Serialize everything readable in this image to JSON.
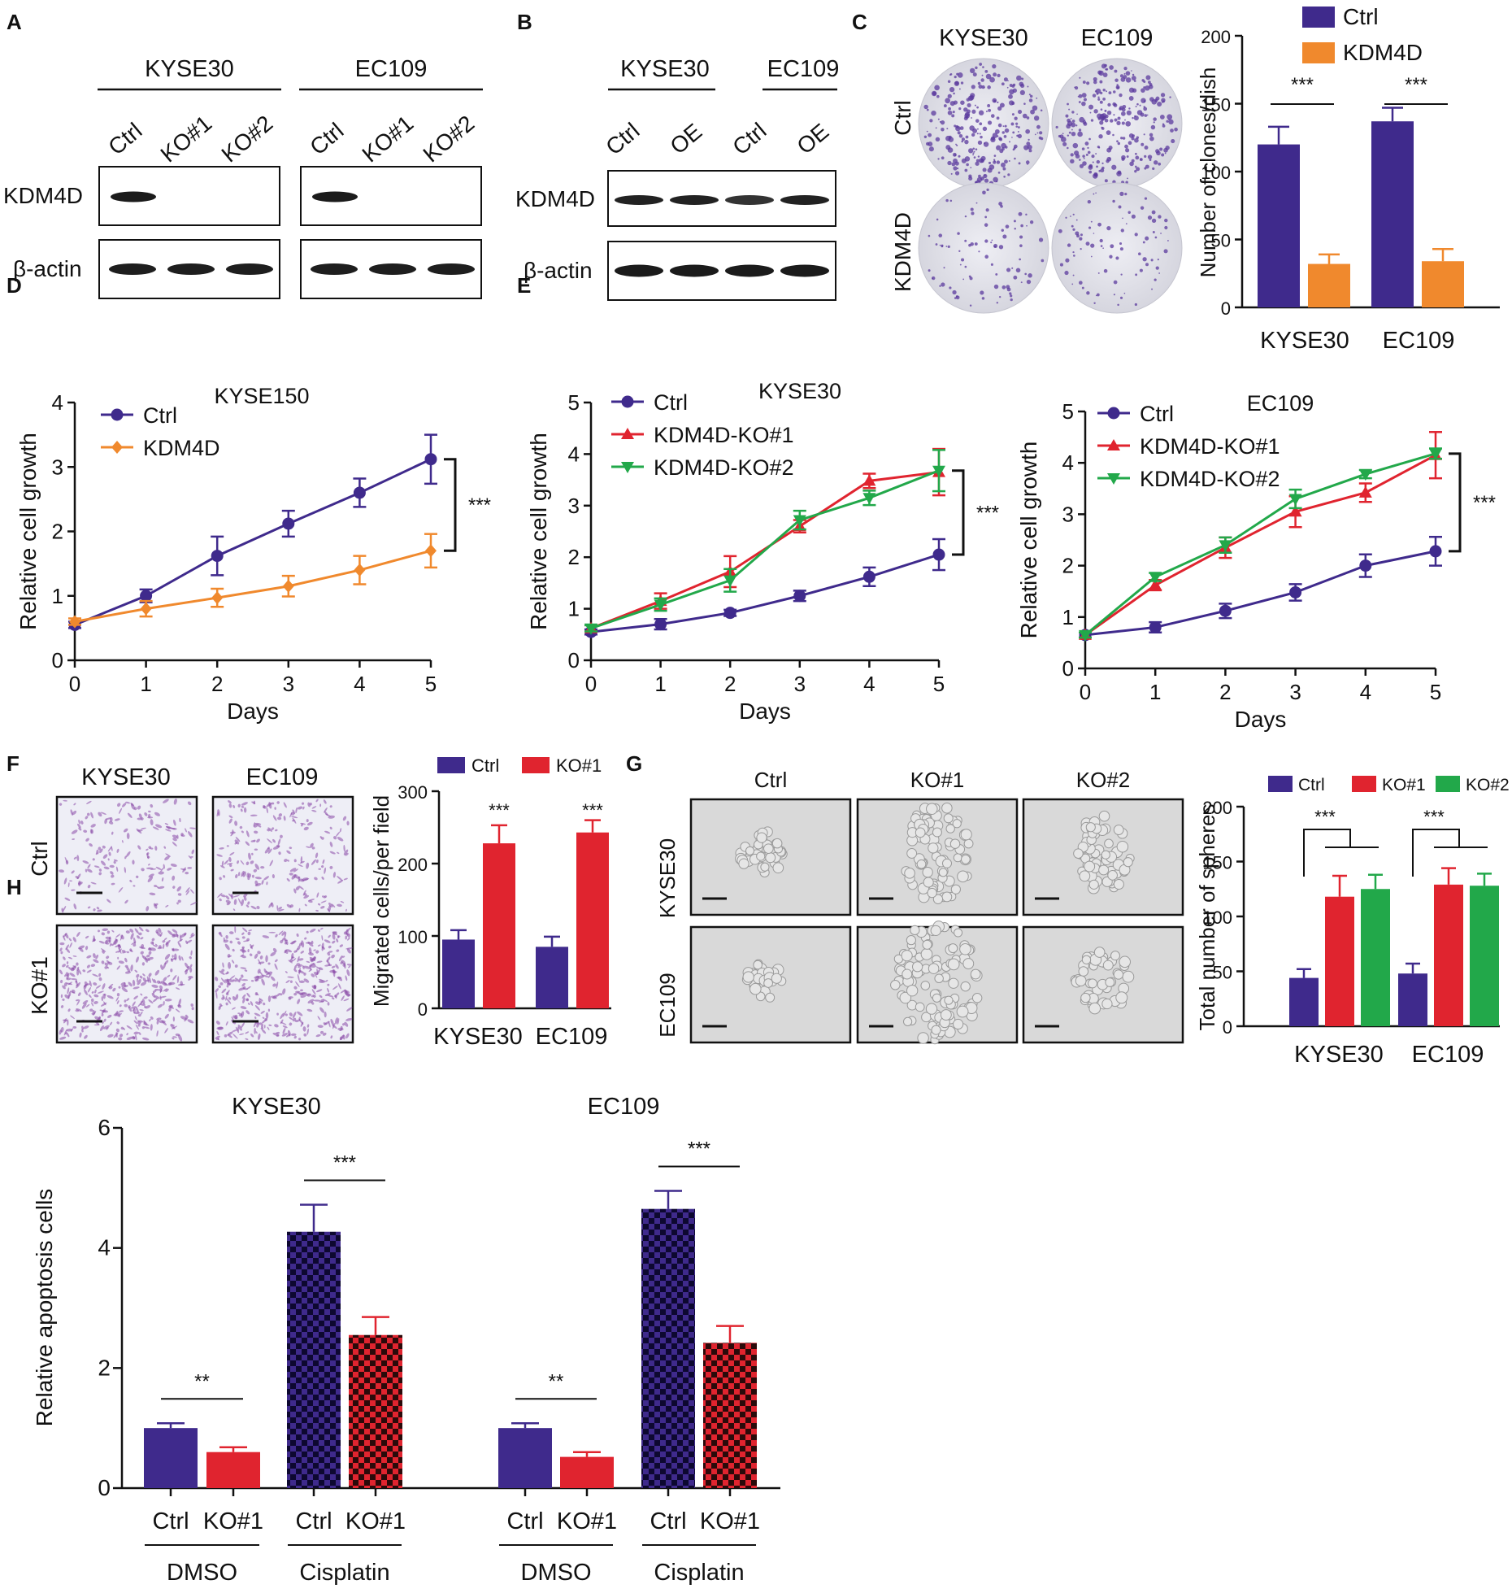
{
  "panel_labels": [
    "A",
    "B",
    "C",
    "D",
    "E",
    "F",
    "G",
    "H"
  ],
  "colors": {
    "ctrl": "#3f2a8c",
    "kdm4d": "#f0892d",
    "ko1": "#e0242f",
    "ko2": "#22a84a",
    "axis": "#111111"
  },
  "panel_a": {
    "cell_lines": [
      "KYSE30",
      "EC109"
    ],
    "lanes": [
      [
        "Ctrl",
        "KO#1",
        "KO#2"
      ],
      [
        "Ctrl",
        "KO#1",
        "KO#2"
      ]
    ],
    "rows": [
      "KDM4D",
      "β-actin"
    ]
  },
  "panel_b": {
    "cell_lines": [
      "KYSE30",
      "EC109"
    ],
    "lanes": [
      "Ctrl",
      "OE",
      "Ctrl",
      "OE"
    ],
    "rows": [
      "KDM4D",
      "β-actin"
    ]
  },
  "panel_c": {
    "columns": [
      "KYSE30",
      "EC109"
    ],
    "rows": [
      "Ctrl",
      "KDM4D"
    ]
  },
  "panel_f": {
    "columns": [
      "KYSE30",
      "EC109"
    ],
    "rows": [
      "Ctrl",
      "KO#1"
    ]
  },
  "panel_g": {
    "columns": [
      "Ctrl",
      "KO#1",
      "KO#2"
    ],
    "rows": [
      "KYSE30",
      "EC109"
    ]
  },
  "chart_data": [
    {
      "id": "C",
      "type": "bar",
      "title": "",
      "xlabel": "",
      "ylabel": "Number of clones/dish",
      "categories": [
        "KYSE30",
        "EC109"
      ],
      "ylim": [
        0,
        200
      ],
      "yticks": [
        0,
        50,
        100,
        150,
        200
      ],
      "series": [
        {
          "name": "Ctrl",
          "values": [
            120,
            137
          ],
          "errors": [
            13,
            10
          ]
        },
        {
          "name": "KDM4D",
          "values": [
            32,
            34
          ],
          "errors": [
            7,
            9
          ]
        }
      ],
      "significance": [
        "***",
        "***"
      ],
      "legend": "top-right"
    },
    {
      "id": "D",
      "type": "line",
      "title": "KYSE150",
      "xlabel": "Days",
      "ylabel": "Relative cell growth",
      "x": [
        0,
        1,
        2,
        3,
        4,
        5
      ],
      "xlim": [
        0,
        5
      ],
      "ylim": [
        0,
        4
      ],
      "yticks": [
        0,
        1,
        2,
        3,
        4
      ],
      "series": [
        {
          "name": "Ctrl",
          "values": [
            0.55,
            1.0,
            1.62,
            2.12,
            2.6,
            3.12
          ],
          "errors": [
            0.05,
            0.1,
            0.3,
            0.2,
            0.22,
            0.38
          ]
        },
        {
          "name": "KDM4D",
          "values": [
            0.6,
            0.8,
            0.97,
            1.15,
            1.4,
            1.7
          ],
          "errors": [
            0.05,
            0.12,
            0.14,
            0.16,
            0.22,
            0.26
          ]
        }
      ],
      "significance": "***"
    },
    {
      "id": "E1",
      "type": "line",
      "title": "KYSE30",
      "xlabel": "Days",
      "ylabel": "Relative cell growth",
      "x": [
        0,
        1,
        2,
        3,
        4,
        5
      ],
      "xlim": [
        0,
        5
      ],
      "ylim": [
        0,
        5
      ],
      "yticks": [
        0,
        1,
        2,
        3,
        4,
        5
      ],
      "series": [
        {
          "name": "Ctrl",
          "values": [
            0.55,
            0.7,
            0.92,
            1.25,
            1.62,
            2.05
          ],
          "errors": [
            0.05,
            0.1,
            0.06,
            0.1,
            0.18,
            0.3
          ]
        },
        {
          "name": "KDM4D-KO#1",
          "values": [
            0.62,
            1.15,
            1.72,
            2.6,
            3.48,
            3.65
          ],
          "errors": [
            0.06,
            0.15,
            0.3,
            0.12,
            0.14,
            0.45
          ]
        },
        {
          "name": "KDM4D-KO#2",
          "values": [
            0.62,
            1.08,
            1.55,
            2.72,
            3.15,
            3.68
          ],
          "errors": [
            0.06,
            0.12,
            0.22,
            0.18,
            0.14,
            0.4
          ]
        }
      ],
      "significance": "***"
    },
    {
      "id": "E2",
      "type": "line",
      "title": "EC109",
      "xlabel": "Days",
      "ylabel": "Relative cell growth",
      "x": [
        0,
        1,
        2,
        3,
        4,
        5
      ],
      "xlim": [
        0,
        5
      ],
      "ylim": [
        0,
        5
      ],
      "yticks": [
        0,
        1,
        2,
        3,
        4,
        5
      ],
      "series": [
        {
          "name": "Ctrl",
          "values": [
            0.65,
            0.8,
            1.12,
            1.48,
            2.0,
            2.28
          ],
          "errors": [
            0.05,
            0.1,
            0.14,
            0.16,
            0.22,
            0.28
          ]
        },
        {
          "name": "KDM4D-KO#1",
          "values": [
            0.65,
            1.62,
            2.35,
            3.05,
            3.42,
            4.15
          ],
          "errors": [
            0.05,
            0.1,
            0.2,
            0.3,
            0.18,
            0.45
          ]
        },
        {
          "name": "KDM4D-KO#2",
          "values": [
            0.65,
            1.78,
            2.4,
            3.3,
            3.78,
            4.18
          ],
          "errors": [
            0.05,
            0.08,
            0.15,
            0.18,
            0.08,
            0.1
          ]
        }
      ],
      "significance": "***"
    },
    {
      "id": "F",
      "type": "bar",
      "title": "",
      "xlabel": "",
      "ylabel": "Migrated cells/per field",
      "categories": [
        "KYSE30",
        "EC109"
      ],
      "ylim": [
        0,
        300
      ],
      "yticks": [
        0,
        100,
        200,
        300
      ],
      "series": [
        {
          "name": "Ctrl",
          "values": [
            95,
            85
          ],
          "errors": [
            13,
            14
          ]
        },
        {
          "name": "KO#1",
          "values": [
            228,
            243
          ],
          "errors": [
            25,
            17
          ]
        }
      ],
      "significance": [
        "***",
        "***"
      ],
      "legend": "top"
    },
    {
      "id": "G",
      "type": "bar",
      "title": "",
      "xlabel": "",
      "ylabel": "Total number of spheres",
      "categories": [
        "KYSE30",
        "EC109"
      ],
      "ylim": [
        0,
        200
      ],
      "yticks": [
        0,
        50,
        100,
        150,
        200
      ],
      "series": [
        {
          "name": "Ctrl",
          "values": [
            44,
            48
          ],
          "errors": [
            8,
            9
          ]
        },
        {
          "name": "KO#1",
          "values": [
            118,
            129
          ],
          "errors": [
            19,
            15
          ]
        },
        {
          "name": "KO#2",
          "values": [
            125,
            128
          ],
          "errors": [
            13,
            11
          ]
        }
      ],
      "significance": [
        "***",
        "***"
      ],
      "legend": "top"
    },
    {
      "id": "H",
      "type": "bar",
      "title": "",
      "xlabel": "",
      "ylabel": "Relative apoptosis cells",
      "groups": [
        "KYSE30",
        "EC109"
      ],
      "ylim": [
        0,
        6
      ],
      "yticks": [
        0,
        2,
        4,
        6
      ],
      "bar_labels": [
        "Ctrl",
        "KO#1",
        "Ctrl",
        "KO#1"
      ],
      "treatments": [
        "DMSO",
        "Cisplatin"
      ],
      "series": [
        {
          "name": "KYSE30",
          "values": [
            1.0,
            0.6,
            4.27,
            2.55
          ],
          "errors": [
            0.08,
            0.08,
            0.45,
            0.3
          ]
        },
        {
          "name": "EC109",
          "values": [
            1.0,
            0.52,
            4.65,
            2.42
          ],
          "errors": [
            0.08,
            0.08,
            0.3,
            0.28
          ]
        }
      ],
      "significance": [
        [
          "**",
          "***"
        ],
        [
          "**",
          "***"
        ]
      ],
      "patterns": [
        "solid",
        "solid",
        "checkered",
        "checkered"
      ]
    }
  ]
}
